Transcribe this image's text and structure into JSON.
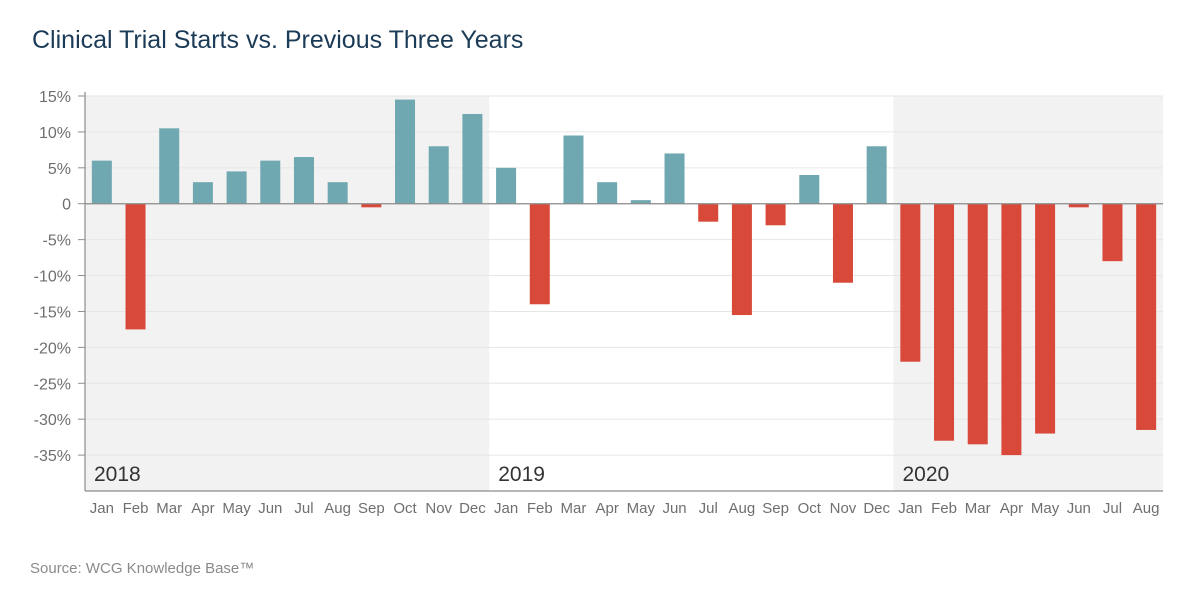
{
  "title": "Clinical Trial Starts vs. Previous Three Years",
  "source": "Source: WCG Knowledge Base™",
  "chart_data": {
    "type": "bar",
    "title": "Clinical Trial Starts vs. Previous Three Years",
    "xlabel": "",
    "ylabel": "",
    "ylim": [
      -40,
      15
    ],
    "yticks": [
      15,
      10,
      5,
      0,
      -5,
      -10,
      -15,
      -20,
      -25,
      -30,
      -35
    ],
    "ytick_labels": [
      "15%",
      "10%",
      "5%",
      "0",
      "-5%",
      "-10%",
      "-15%",
      "-20%",
      "-25%",
      "-30%",
      "-35%"
    ],
    "grid": true,
    "colors": {
      "positive": "#6fa8b0",
      "negative": "#d9493a",
      "band": "#f2f2f2"
    },
    "year_groups": [
      {
        "year": "2018",
        "start": 0,
        "end": 11,
        "shaded": true
      },
      {
        "year": "2019",
        "start": 12,
        "end": 23,
        "shaded": false
      },
      {
        "year": "2020",
        "start": 24,
        "end": 31,
        "shaded": true
      }
    ],
    "categories": [
      "Jan",
      "Feb",
      "Mar",
      "Apr",
      "May",
      "Jun",
      "Jul",
      "Aug",
      "Sep",
      "Oct",
      "Nov",
      "Dec",
      "Jan",
      "Feb",
      "Mar",
      "Apr",
      "May",
      "Jun",
      "Jul",
      "Aug",
      "Sep",
      "Oct",
      "Nov",
      "Dec",
      "Jan",
      "Feb",
      "Mar",
      "Apr",
      "May",
      "Jun",
      "Jul",
      "Aug"
    ],
    "values": [
      6,
      -17.5,
      10.5,
      3,
      4.5,
      6,
      6.5,
      3,
      -0.5,
      14.5,
      8,
      12.5,
      5,
      -14,
      9.5,
      3,
      0.5,
      7,
      -2.5,
      -15.5,
      -3,
      4,
      -11,
      8,
      -22,
      -33,
      -33.5,
      -35,
      -32,
      -0.5,
      -8,
      -31.5
    ]
  }
}
